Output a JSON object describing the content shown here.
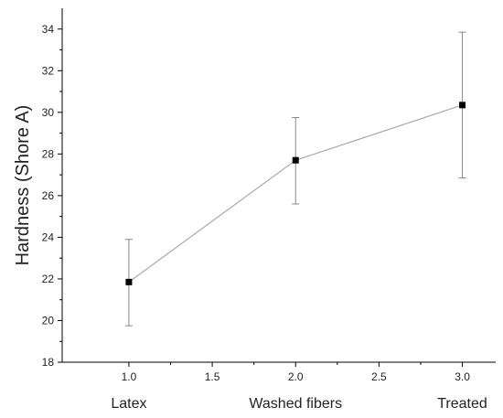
{
  "chart_data": {
    "type": "line",
    "title": "",
    "xlabel": "",
    "ylabel": "Hardness (Shore A)",
    "xlim": [
      0.6,
      3.2
    ],
    "ylim": [
      18,
      35
    ],
    "xticks": [
      "1.0",
      "1.5",
      "2.0",
      "2.5",
      "3.0"
    ],
    "yticks": [
      "18",
      "20",
      "22",
      "24",
      "26",
      "28",
      "30",
      "32",
      "34"
    ],
    "category_labels": [
      {
        "x": 1.0,
        "label": "Latex"
      },
      {
        "x": 2.0,
        "label": "Washed fibers"
      },
      {
        "x": 3.0,
        "label": "Treated"
      }
    ],
    "series": [
      {
        "x": [
          1.0,
          2.0,
          3.0
        ],
        "values": [
          21.85,
          27.7,
          30.35
        ],
        "error_low": [
          19.75,
          25.6,
          26.85
        ],
        "error_high": [
          23.9,
          29.75,
          33.85
        ]
      }
    ],
    "grid": false,
    "legend": "none",
    "colors": {
      "line": "#aaaaaa",
      "marker": "#000000",
      "errorbar": "#888888",
      "axis": "#000000"
    }
  }
}
